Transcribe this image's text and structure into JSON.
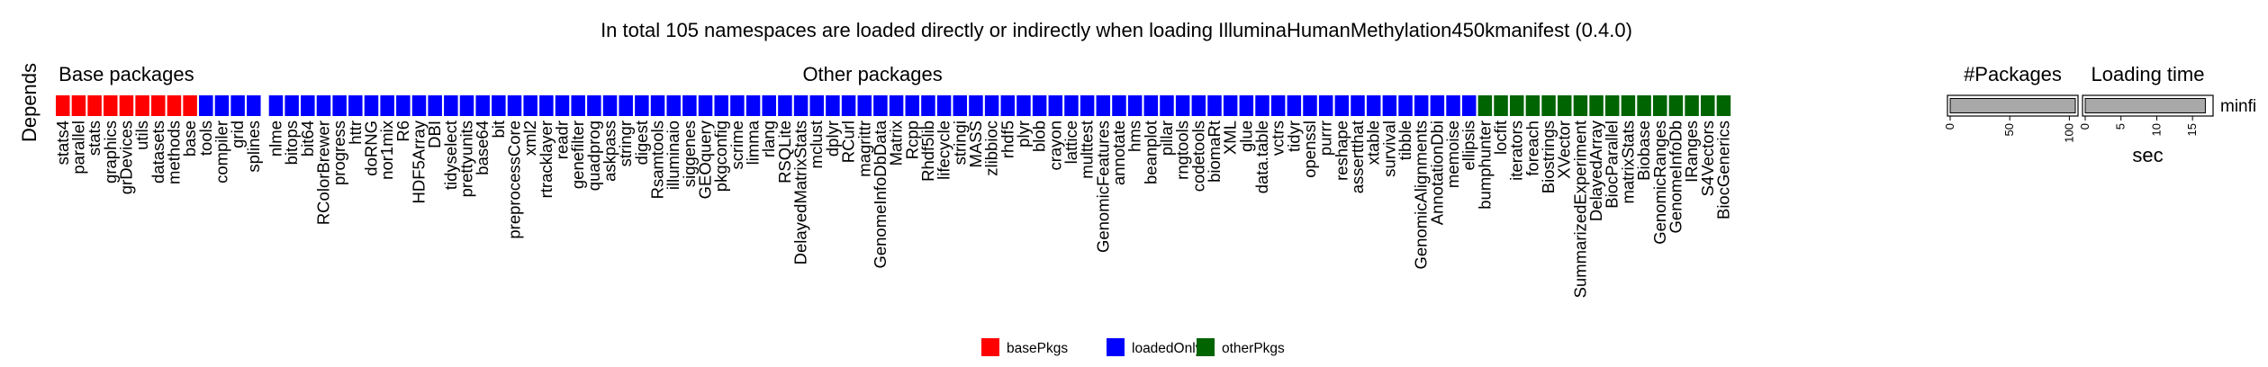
{
  "chart_data": {
    "type": "heatmap",
    "title": "In total 105 namespaces are loaded directly or indirectly when loading IlluminaHumanMethylation450kmanifest (0.4.0)",
    "row_label": "Depends",
    "groups": [
      {
        "label": "Base packages",
        "category": "basePkgs",
        "packages": [
          "stats4",
          "parallel",
          "stats",
          "graphics",
          "grDevices",
          "utils",
          "datasets",
          "methods",
          "base"
        ]
      },
      {
        "label": "",
        "category": "loadedOnly",
        "packages": [
          "tools",
          "compiler",
          "grid",
          "splines"
        ]
      },
      {
        "label": "Other packages",
        "category": "loadedOnly",
        "packages": [
          "nlme",
          "bitops",
          "bit64",
          "RColorBrewer",
          "progress",
          "httr",
          "doRNG",
          "nor1mix",
          "R6",
          "HDF5Array",
          "DBI",
          "tidyselect",
          "prettyunits",
          "base64",
          "bit",
          "preprocessCore",
          "xml2",
          "rtracklayer",
          "readr",
          "genefilter",
          "quadprog",
          "askpass",
          "stringr",
          "digest",
          "Rsamtools",
          "illuminaio",
          "siggenes",
          "GEOquery",
          "pkgconfig",
          "scrime",
          "limma",
          "rlang",
          "RSQLite",
          "DelayedMatrixStats",
          "mclust",
          "dplyr",
          "RCurl",
          "magrittr",
          "GenomeInfoDbData",
          "Matrix",
          "Rcpp",
          "Rhdf5lib",
          "lifecycle",
          "stringi",
          "MASS",
          "zlibbioc",
          "rhdf5",
          "plyr",
          "blob",
          "crayon",
          "lattice",
          "multtest",
          "GenomicFeatures",
          "annotate",
          "hms",
          "beanplot",
          "pillar",
          "rngtools",
          "codetools",
          "biomaRt",
          "XML",
          "glue",
          "data.table",
          "vctrs",
          "tidyr",
          "openssl",
          "purrr",
          "reshape",
          "assertthat",
          "xtable",
          "survival",
          "tibble",
          "GenomicAlignments",
          "AnnotationDbi",
          "memoise",
          "ellipsis"
        ]
      },
      {
        "label": "",
        "category": "otherPkgs",
        "packages": [
          "bumphunter",
          "locfit",
          "iterators",
          "foreach",
          "Biostrings",
          "XVector",
          "SummarizedExperiment",
          "DelayedArray",
          "BiocParallel",
          "matrixStats",
          "Biobase",
          "GenomicRanges",
          "GenomeInfoDb",
          "IRanges",
          "S4Vectors",
          "BiocGenerics"
        ]
      }
    ],
    "legend": [
      {
        "key": "basePkgs",
        "label": "basePkgs",
        "color": "#FF0000"
      },
      {
        "key": "loadedOnly",
        "label": "loadedOnly",
        "color": "#0000FF"
      },
      {
        "key": "otherPkgs",
        "label": "otherPkgs",
        "color": "#006400"
      }
    ],
    "legend_position": "bottom",
    "summary_bars": {
      "row_name": "minfi",
      "packages": {
        "title": "#Packages",
        "value": 105,
        "xlim": [
          0,
          105
        ],
        "ticks": [
          0,
          50,
          100
        ],
        "xlabel": ""
      },
      "loading_time": {
        "title": "Loading time",
        "value": 16.8,
        "xlim": [
          0,
          17.5
        ],
        "ticks": [
          0,
          5,
          10,
          15
        ],
        "xlabel": "sec"
      }
    }
  }
}
